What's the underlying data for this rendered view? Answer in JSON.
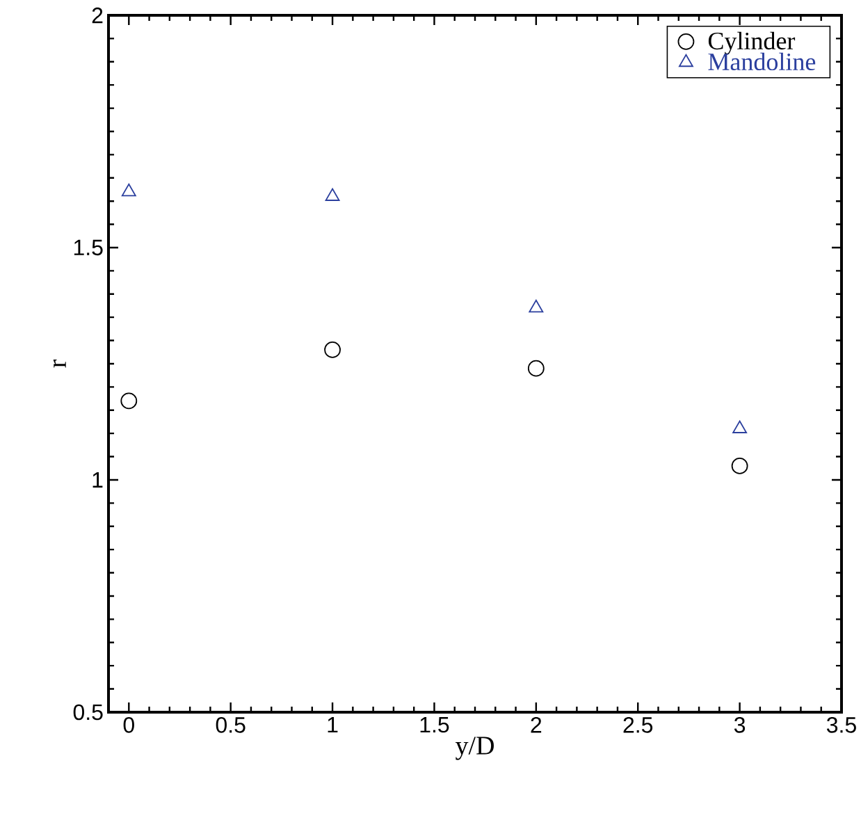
{
  "chart_data": {
    "type": "scatter",
    "xlabel": "y/D",
    "ylabel": "r",
    "xlim": [
      -0.1,
      3.5
    ],
    "ylim": [
      0.5,
      2
    ],
    "xticks": [
      0,
      0.5,
      1,
      1.5,
      2,
      2.5,
      3,
      3.5
    ],
    "yticks": [
      0.5,
      1,
      1.5,
      2
    ],
    "x": [
      0,
      1,
      2,
      3
    ],
    "series": [
      {
        "name": "Cylinder",
        "color": "#000000",
        "marker": "circle",
        "values": [
          1.17,
          1.28,
          1.24,
          1.03
        ]
      },
      {
        "name": "Mandoline",
        "color": "#2b3f9e",
        "marker": "triangle",
        "values": [
          1.62,
          1.61,
          1.37,
          1.11
        ]
      }
    ],
    "legend": "top right",
    "grid": false
  }
}
